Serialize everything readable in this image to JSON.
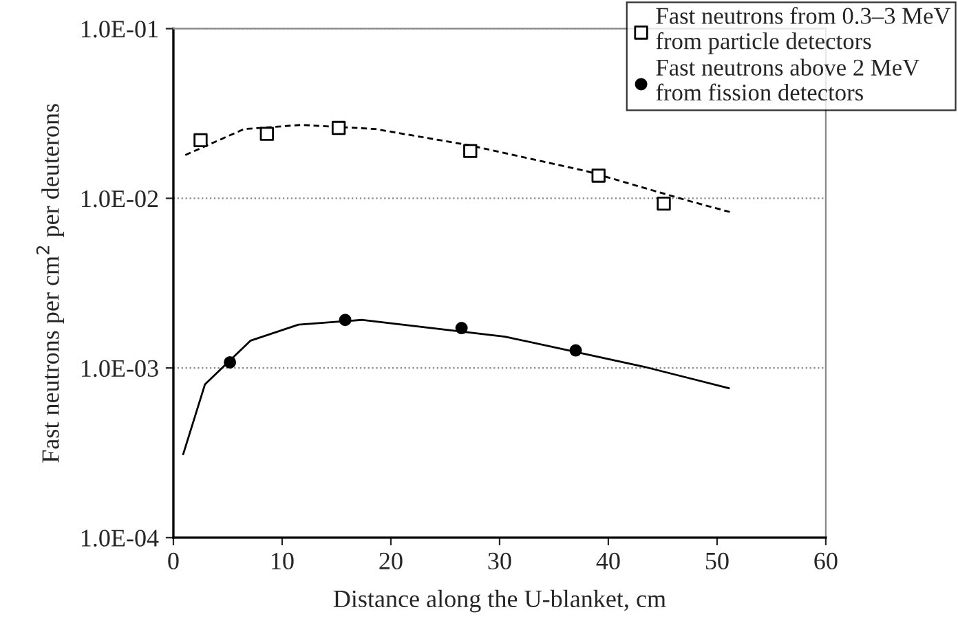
{
  "chart_data": {
    "type": "scatter",
    "xlabel": "Distance along the U-blanket, cm",
    "ylabel": "Fast neutrons per cm$^{2}$ per deuterons",
    "log": "y",
    "xlim": [
      0,
      60
    ],
    "xticks": [
      0,
      10,
      20,
      30,
      40,
      50,
      60
    ],
    "ylim": [
      0.0001,
      0.1
    ],
    "yticks": [
      {
        "value": 0.0001,
        "label": "1.0E-04"
      },
      {
        "value": 0.001,
        "label": "1.0E-03"
      },
      {
        "value": 0.01,
        "label": "1.0E-02"
      },
      {
        "value": 0.1,
        "label": "1.0E-01"
      }
    ],
    "grid": "y",
    "legend": "top right",
    "series": [
      {
        "name": "Fast neutrons from 0.3–3 MeV\nfrom particle detectors",
        "marker": "square",
        "color": "#000000",
        "x": [
          2.5,
          8.6,
          15.2,
          27.3,
          39.1,
          45.1
        ],
        "values": [
          0.022,
          0.024,
          0.026,
          0.019,
          0.0136,
          0.0093
        ]
      },
      {
        "name": "Fast neutrons above 2 MeV\nfrom fission detectors",
        "marker": "circle",
        "color": "#000000",
        "x": [
          5.2,
          15.8,
          26.5,
          37.0
        ],
        "values": [
          0.00108,
          0.00192,
          0.00172,
          0.00127
        ]
      },
      {
        "type": "line",
        "line_style": "dashed",
        "color": "#000000",
        "x": [
          1.1,
          6.5,
          11.8,
          18.6,
          27.3,
          38.1,
          47.3,
          51.5
        ],
        "values": [
          0.018,
          0.0256,
          0.0271,
          0.0256,
          0.0205,
          0.0144,
          0.0097,
          0.0082
        ]
      },
      {
        "type": "line",
        "line_style": "solid",
        "color": "#000000",
        "x": [
          0.9,
          2.9,
          7.1,
          11.5,
          17.3,
          30.5,
          43.2,
          51.1
        ],
        "values": [
          0.00031,
          0.0008,
          0.00145,
          0.0018,
          0.00192,
          0.00153,
          0.00102,
          0.00076
        ]
      }
    ]
  }
}
